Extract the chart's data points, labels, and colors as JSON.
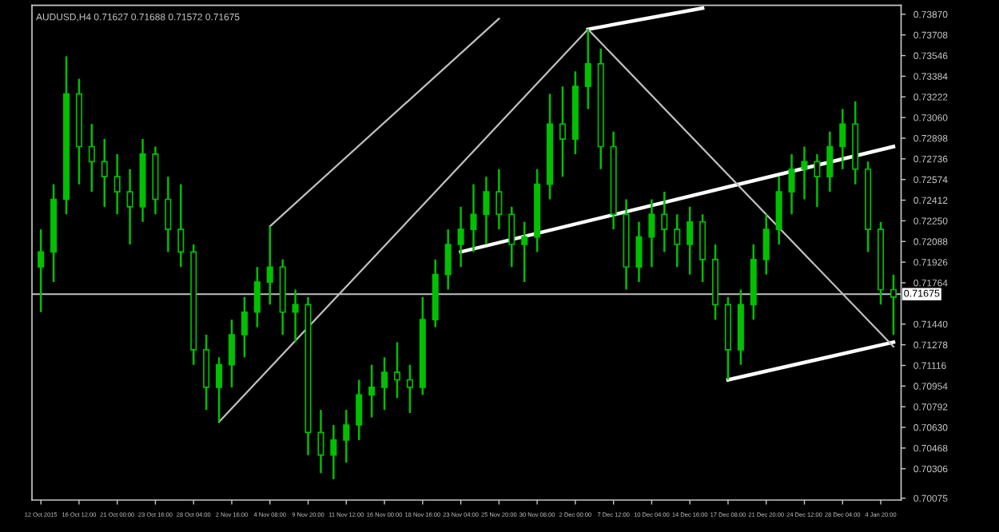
{
  "chart_data": {
    "type": "candlestick",
    "title": "AUDUSD,H4 0.71627 0.71688 0.71572 0.71675",
    "categories": [
      "12 Oct 2015",
      null,
      null,
      "16 Oct 12:00",
      null,
      null,
      "21 Oct 00:00",
      null,
      null,
      "23 Oct 16:00",
      null,
      null,
      "28 Oct 04:00",
      null,
      null,
      "2 Nov 16:00",
      null,
      null,
      "4 Nov 08:00",
      null,
      null,
      "9 Nov 20:00",
      null,
      null,
      "11 Nov 12:00",
      null,
      null,
      "16 Nov 00:00",
      null,
      null,
      "18 Nov 16:00",
      null,
      null,
      "23 Nov 04:00",
      null,
      null,
      "25 Nov 20:00",
      null,
      null,
      "30 Nov 08:00",
      null,
      null,
      "2 Dec 00:00",
      null,
      null,
      "7 Dec 12:00",
      null,
      null,
      "10 Dec 04:00",
      null,
      null,
      "14 Dec 16:00",
      null,
      null,
      "17 Dec 08:00",
      null,
      null,
      "21 Dec 20:00",
      null,
      null,
      "24 Dec 12:00",
      null,
      null,
      "28 Dec 04:00",
      null,
      null,
      "4 Jan 20:00",
      null
    ],
    "ohlc": [
      [
        0.71888,
        0.72183,
        0.71534,
        0.72006
      ],
      [
        0.72006,
        0.72537,
        0.7177,
        0.72419
      ],
      [
        0.72419,
        0.7354,
        0.72301,
        0.73245
      ],
      [
        0.73245,
        0.73363,
        0.72537,
        0.72832
      ],
      [
        0.72832,
        0.73009,
        0.72478,
        0.72714
      ],
      [
        0.72714,
        0.72891,
        0.7236,
        0.72596
      ],
      [
        0.72596,
        0.72773,
        0.72301,
        0.72478
      ],
      [
        0.72478,
        0.72655,
        0.72065,
        0.7236
      ],
      [
        0.7236,
        0.72891,
        0.72242,
        0.72773
      ],
      [
        0.72773,
        0.72832,
        0.72301,
        0.72419
      ],
      [
        0.72419,
        0.72596,
        0.72006,
        0.72183
      ],
      [
        0.72183,
        0.72537,
        0.71888,
        0.72006
      ],
      [
        0.72006,
        0.72065,
        0.71121,
        0.71239
      ],
      [
        0.71239,
        0.71357,
        0.70767,
        0.70944
      ],
      [
        0.70944,
        0.7118,
        0.70673,
        0.71121
      ],
      [
        0.71121,
        0.71475,
        0.70944,
        0.71357
      ],
      [
        0.71357,
        0.71652,
        0.7118,
        0.71534
      ],
      [
        0.71534,
        0.71888,
        0.71416,
        0.7177
      ],
      [
        0.7177,
        0.72207,
        0.71593,
        0.71888
      ],
      [
        0.71888,
        0.71947,
        0.71357,
        0.71534
      ],
      [
        0.71534,
        0.71711,
        0.71298,
        0.71593
      ],
      [
        0.71593,
        0.71652,
        0.70413,
        0.7059
      ],
      [
        0.7059,
        0.70767,
        0.70271,
        0.70413
      ],
      [
        0.70413,
        0.70649,
        0.70224,
        0.70531
      ],
      [
        0.70531,
        0.70767,
        0.70354,
        0.70649
      ],
      [
        0.70649,
        0.71003,
        0.70531,
        0.70885
      ],
      [
        0.70885,
        0.71121,
        0.70708,
        0.70944
      ],
      [
        0.70944,
        0.7118,
        0.70767,
        0.71062
      ],
      [
        0.71062,
        0.71298,
        0.70861,
        0.71003
      ],
      [
        0.71003,
        0.71121,
        0.70743,
        0.70944
      ],
      [
        0.70944,
        0.71652,
        0.70885,
        0.71475
      ],
      [
        0.71475,
        0.71947,
        0.71416,
        0.71829
      ],
      [
        0.71829,
        0.72183,
        0.71711,
        0.72065
      ],
      [
        0.72065,
        0.7236,
        0.71888,
        0.72183
      ],
      [
        0.72183,
        0.72537,
        0.72006,
        0.72301
      ],
      [
        0.72301,
        0.72596,
        0.72065,
        0.72478
      ],
      [
        0.72478,
        0.72655,
        0.72183,
        0.72301
      ],
      [
        0.72301,
        0.7236,
        0.71888,
        0.72065
      ],
      [
        0.72065,
        0.72242,
        0.7177,
        0.72124
      ],
      [
        0.72124,
        0.72655,
        0.72006,
        0.72537
      ],
      [
        0.72537,
        0.73245,
        0.72419,
        0.73009
      ],
      [
        0.73009,
        0.73304,
        0.72596,
        0.72891
      ],
      [
        0.72891,
        0.73422,
        0.72773,
        0.73304
      ],
      [
        0.73304,
        0.73752,
        0.73127,
        0.73481
      ],
      [
        0.73481,
        0.73599,
        0.72655,
        0.72832
      ],
      [
        0.72832,
        0.7295,
        0.72183,
        0.72301
      ],
      [
        0.72301,
        0.72419,
        0.71711,
        0.71888
      ],
      [
        0.71888,
        0.72242,
        0.7177,
        0.72124
      ],
      [
        0.72124,
        0.72419,
        0.71888,
        0.72301
      ],
      [
        0.72301,
        0.72478,
        0.72006,
        0.72183
      ],
      [
        0.72183,
        0.72301,
        0.71888,
        0.72065
      ],
      [
        0.72065,
        0.7236,
        0.71829,
        0.72242
      ],
      [
        0.72242,
        0.72301,
        0.7177,
        0.71947
      ],
      [
        0.71947,
        0.72065,
        0.71475,
        0.71593
      ],
      [
        0.71593,
        0.71652,
        0.71003,
        0.71239
      ],
      [
        0.71239,
        0.71711,
        0.71121,
        0.71593
      ],
      [
        0.71593,
        0.72065,
        0.71475,
        0.71947
      ],
      [
        0.71947,
        0.72301,
        0.71829,
        0.72183
      ],
      [
        0.72183,
        0.72596,
        0.72065,
        0.72478
      ],
      [
        0.72478,
        0.72773,
        0.72301,
        0.72655
      ],
      [
        0.72655,
        0.72832,
        0.72419,
        0.72714
      ],
      [
        0.72714,
        0.72773,
        0.7236,
        0.72596
      ],
      [
        0.72596,
        0.7295,
        0.72478,
        0.72832
      ],
      [
        0.72832,
        0.73127,
        0.72655,
        0.73009
      ],
      [
        0.73009,
        0.73186,
        0.72537,
        0.72655
      ],
      [
        0.72655,
        0.72714,
        0.72006,
        0.72183
      ],
      [
        0.72183,
        0.72242,
        0.71593,
        0.71711
      ],
      [
        0.71711,
        0.71829,
        0.71357,
        0.71652
      ]
    ],
    "color": "#00c000",
    "series": [
      {
        "type": "line",
        "color": "#ffffff",
        "values": [
          null,
          null,
          null,
          null,
          null,
          null,
          null,
          null,
          null,
          null,
          null,
          null,
          null,
          null,
          null,
          null,
          null,
          null,
          null,
          null,
          null,
          null,
          null,
          null,
          null,
          null,
          null,
          null,
          null,
          null,
          null,
          null,
          null,
          0.72006,
          null,
          null,
          null,
          null,
          null,
          null,
          null,
          null,
          null,
          null,
          null,
          null,
          null,
          null,
          null,
          null,
          null,
          null,
          null,
          null,
          null,
          null,
          null,
          null,
          null,
          null,
          null,
          null,
          null,
          null,
          null,
          null,
          null,
          0.72832
        ]
      },
      {
        "type": "line",
        "color": "#ffffff",
        "values": [
          null,
          null,
          null,
          null,
          null,
          null,
          null,
          null,
          null,
          null,
          null,
          null,
          null,
          null,
          null,
          null,
          null,
          null,
          null,
          null,
          null,
          null,
          null,
          null,
          null,
          null,
          null,
          null,
          null,
          null,
          null,
          null,
          null,
          null,
          null,
          null,
          null,
          null,
          null,
          null,
          null,
          null,
          null,
          null,
          null,
          null,
          null,
          null,
          null,
          null,
          null,
          null,
          null,
          null,
          0.71003,
          null,
          null,
          null,
          null,
          null,
          null,
          null,
          null,
          null,
          null,
          null,
          null,
          0.71298
        ]
      },
      {
        "type": "line",
        "color": "#ffffff",
        "values": [
          null,
          null,
          null,
          null,
          null,
          null,
          null,
          null,
          null,
          null,
          null,
          null,
          null,
          null,
          null,
          null,
          null,
          null,
          null,
          null,
          null,
          null,
          null,
          null,
          null,
          null,
          null,
          null,
          null,
          null,
          null,
          null,
          null,
          null,
          null,
          null,
          null,
          null,
          null,
          null,
          null,
          null,
          null,
          0.73752,
          null,
          null,
          null,
          null,
          null,
          null,
          null,
          null,
          0.73918,
          null,
          null,
          null,
          null,
          null,
          null,
          null,
          null,
          null,
          null,
          null,
          null,
          null,
          null,
          null
        ]
      },
      {
        "type": "line",
        "color": "#c0c0c0",
        "values": [
          null,
          null,
          null,
          null,
          null,
          null,
          null,
          null,
          null,
          null,
          null,
          null,
          null,
          null,
          0.70673,
          null,
          null,
          null,
          null,
          null,
          null,
          null,
          null,
          null,
          null,
          null,
          null,
          null,
          null,
          null,
          null,
          null,
          null,
          null,
          null,
          null,
          null,
          null,
          null,
          null,
          null,
          null,
          null,
          0.73752,
          null,
          null,
          null,
          null,
          null,
          null,
          null,
          null,
          null,
          null,
          null,
          null,
          null,
          null,
          null,
          null,
          null,
          null,
          null,
          null,
          null,
          null,
          null,
          null
        ]
      },
      {
        "type": "line",
        "color": "#c0c0c0",
        "values": [
          null,
          null,
          null,
          null,
          null,
          null,
          null,
          null,
          null,
          null,
          null,
          null,
          null,
          null,
          null,
          null,
          null,
          null,
          0.72207,
          null,
          null,
          null,
          null,
          null,
          null,
          null,
          null,
          null,
          null,
          null,
          null,
          null,
          null,
          null,
          null,
          null,
          0.73835,
          null,
          null,
          null,
          null,
          null,
          null,
          null,
          null,
          null,
          null,
          null,
          null,
          null,
          null,
          null,
          null,
          null,
          null,
          null,
          null,
          null,
          null,
          null,
          null,
          null,
          null,
          null,
          null,
          null,
          null,
          null
        ]
      },
      {
        "type": "line",
        "color": "#c0c0c0",
        "values": [
          null,
          null,
          null,
          null,
          null,
          null,
          null,
          null,
          null,
          null,
          null,
          null,
          null,
          null,
          null,
          null,
          null,
          null,
          null,
          null,
          null,
          null,
          null,
          null,
          null,
          null,
          null,
          null,
          null,
          null,
          null,
          null,
          null,
          null,
          null,
          null,
          null,
          null,
          null,
          null,
          null,
          null,
          null,
          0.73752,
          null,
          null,
          null,
          null,
          null,
          null,
          null,
          null,
          null,
          null,
          null,
          null,
          null,
          null,
          null,
          null,
          null,
          null,
          null,
          null,
          null,
          null,
          null,
          0.71263
        ]
      }
    ],
    "ref_lines": [
      {
        "axis": "y",
        "value": 0.71675,
        "label": "0.71675",
        "color": "#c0c0c0"
      }
    ],
    "ylim": [
      0.7006,
      0.7394
    ],
    "yticks": [
      {
        "value": 0.7387,
        "label": "0.73870"
      },
      0.73708,
      0.73546,
      0.73384,
      0.73222,
      {
        "value": 0.7306,
        "label": "0.73060"
      },
      0.72898,
      0.72736,
      0.72574,
      0.72412,
      {
        "value": 0.7225,
        "label": "0.72250"
      },
      0.72088,
      0.71926,
      0.71764,
      {
        "value": 0.7144,
        "label": "0.71440"
      },
      0.71278,
      0.71116,
      0.70954,
      0.70792,
      {
        "value": 0.7063,
        "label": "0.70630"
      },
      0.70468,
      0.70306,
      0.70075
    ],
    "grid": false
  }
}
